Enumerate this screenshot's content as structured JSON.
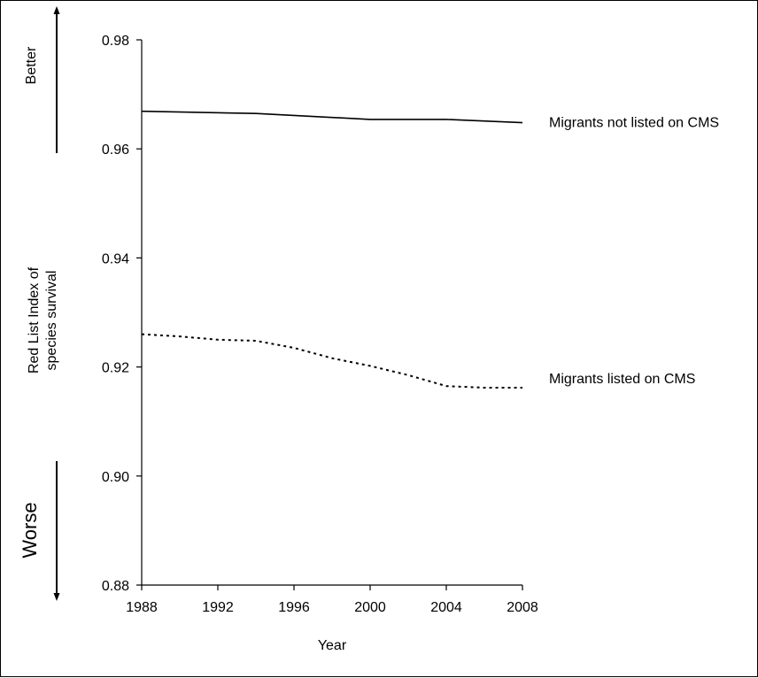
{
  "chart_data": {
    "type": "line",
    "xlabel": "Year",
    "ylabel_lines": [
      "Red List Index of",
      "species survival"
    ],
    "x_ticks": [
      1988,
      1992,
      1996,
      2000,
      2004,
      2008
    ],
    "y_ticks": [
      "0.88",
      "0.90",
      "0.92",
      "0.94",
      "0.96",
      "0.98"
    ],
    "xlim": [
      1988,
      2008
    ],
    "ylim": [
      0.88,
      0.98
    ],
    "grid": false,
    "legend": "inline labels at right end of each line",
    "series": [
      {
        "name": "Migrants not listed on CMS",
        "style": "solid",
        "color": "#000000",
        "x": [
          1988,
          1994,
          2000,
          2004,
          2008
        ],
        "y": [
          0.9669,
          0.9665,
          0.9654,
          0.9654,
          0.9648
        ]
      },
      {
        "name": "Migrants listed on CMS",
        "style": "dotted",
        "color": "#000000",
        "x": [
          1988,
          1990,
          1992,
          1994,
          1996,
          1998,
          2000,
          2002,
          2004,
          2006,
          2008
        ],
        "y": [
          0.926,
          0.9256,
          0.925,
          0.9248,
          0.9235,
          0.9216,
          0.9202,
          0.9185,
          0.9165,
          0.9162,
          0.9162
        ]
      }
    ],
    "direction_indicators": {
      "better": "Better",
      "worse": "Worse"
    }
  }
}
